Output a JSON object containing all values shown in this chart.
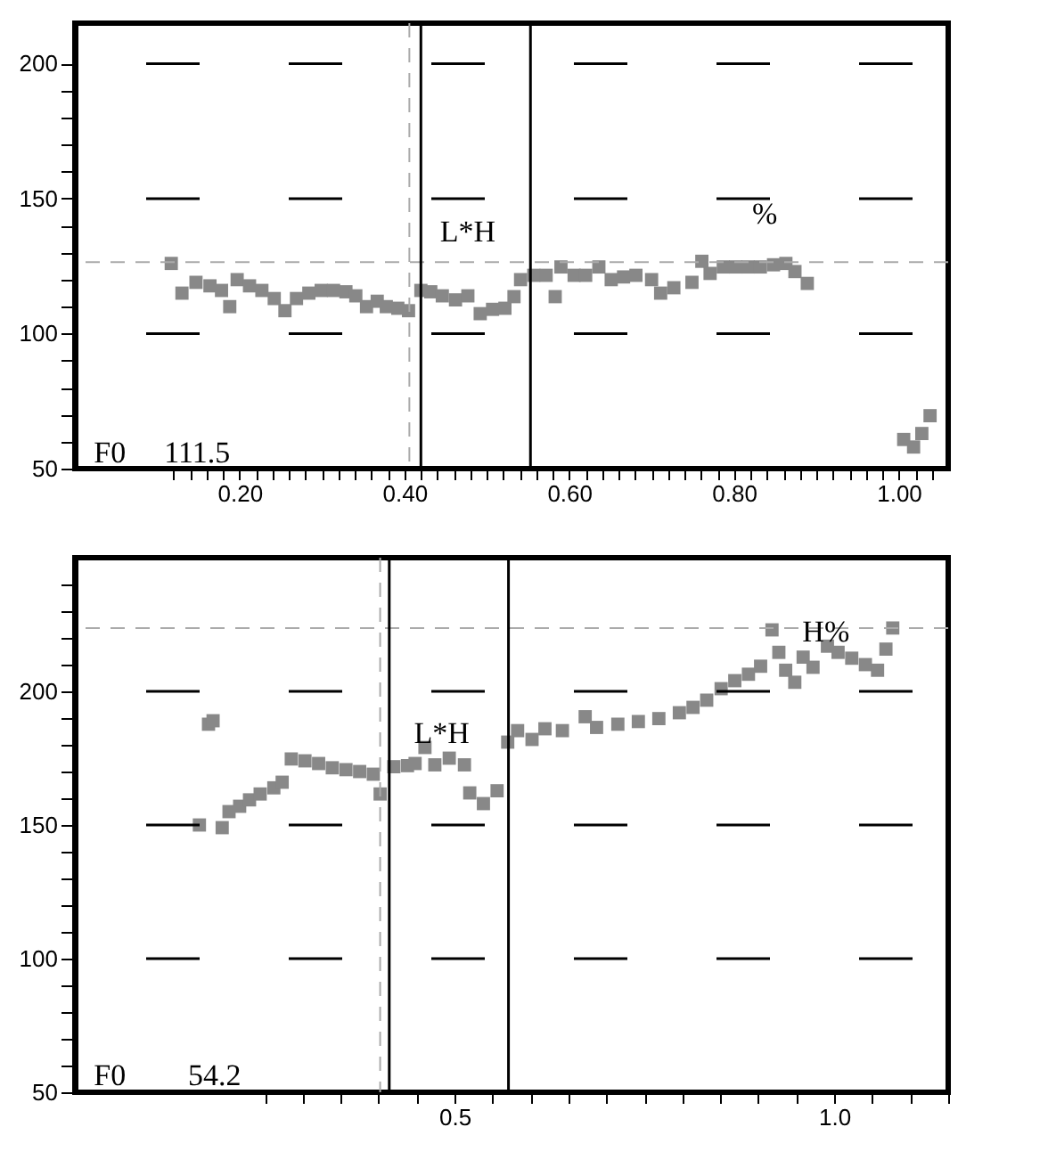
{
  "chart_data": [
    {
      "type": "scatter",
      "marker": "square",
      "grid": "y",
      "xlim": [
        0.0,
        1.06
      ],
      "ylim": [
        50,
        215
      ],
      "xticks": [
        {
          "value": 0.12,
          "label": null
        },
        {
          "value": 0.14,
          "label": null
        },
        {
          "value": 0.16,
          "label": null
        },
        {
          "value": 0.18,
          "label": null
        },
        {
          "value": 0.2,
          "label": "0.20"
        },
        {
          "value": 0.22,
          "label": null
        },
        {
          "value": 0.24,
          "label": null
        },
        {
          "value": 0.26,
          "label": null
        },
        {
          "value": 0.28,
          "label": null
        },
        {
          "value": 0.3,
          "label": null
        },
        {
          "value": 0.32,
          "label": null
        },
        {
          "value": 0.34,
          "label": null
        },
        {
          "value": 0.36,
          "label": null
        },
        {
          "value": 0.38,
          "label": null
        },
        {
          "value": 0.4,
          "label": "0.40"
        },
        {
          "value": 0.42,
          "label": null
        },
        {
          "value": 0.44,
          "label": null
        },
        {
          "value": 0.46,
          "label": null
        },
        {
          "value": 0.48,
          "label": null
        },
        {
          "value": 0.5,
          "label": null
        },
        {
          "value": 0.52,
          "label": null
        },
        {
          "value": 0.54,
          "label": null
        },
        {
          "value": 0.56,
          "label": null
        },
        {
          "value": 0.58,
          "label": null
        },
        {
          "value": 0.6,
          "label": "0.60"
        },
        {
          "value": 0.62,
          "label": null
        },
        {
          "value": 0.64,
          "label": null
        },
        {
          "value": 0.66,
          "label": null
        },
        {
          "value": 0.68,
          "label": null
        },
        {
          "value": 0.7,
          "label": null
        },
        {
          "value": 0.72,
          "label": null
        },
        {
          "value": 0.74,
          "label": null
        },
        {
          "value": 0.76,
          "label": null
        },
        {
          "value": 0.78,
          "label": null
        },
        {
          "value": 0.8,
          "label": "0.80"
        },
        {
          "value": 0.82,
          "label": null
        },
        {
          "value": 0.84,
          "label": null
        },
        {
          "value": 0.86,
          "label": null
        },
        {
          "value": 0.88,
          "label": null
        },
        {
          "value": 0.9,
          "label": null
        },
        {
          "value": 0.92,
          "label": null
        },
        {
          "value": 0.94,
          "label": null
        },
        {
          "value": 0.96,
          "label": null
        },
        {
          "value": 0.98,
          "label": null
        },
        {
          "value": 1.0,
          "label": "1.00"
        },
        {
          "value": 1.02,
          "label": null
        },
        {
          "value": 1.04,
          "label": null
        }
      ],
      "yticks": [
        50,
        {
          "value": 60,
          "label": null
        },
        {
          "value": 70,
          "label": null
        },
        {
          "value": 80,
          "label": null
        },
        {
          "value": 90,
          "label": null
        },
        100,
        {
          "value": 110,
          "label": null
        },
        {
          "value": 120,
          "label": null
        },
        {
          "value": 130,
          "label": null
        },
        {
          "value": 140,
          "label": null
        },
        150,
        {
          "value": 160,
          "label": null
        },
        {
          "value": 170,
          "label": null
        },
        {
          "value": 180,
          "label": null
        },
        {
          "value": 190,
          "label": null
        },
        200
      ],
      "ref_lines": [
        {
          "axis": "y",
          "value": 126.5,
          "line_style": "dashed",
          "color": "#aaaaaa"
        },
        {
          "axis": "x",
          "value": 0.406,
          "line_style": "dashed",
          "color": "#aaaaaa"
        },
        {
          "axis": "x",
          "value": 0.42,
          "line_style": "solid",
          "color": "#000000"
        },
        {
          "axis": "x",
          "value": 0.553,
          "line_style": "solid",
          "color": "#000000"
        }
      ],
      "annotations": [
        "F0",
        "111.5",
        "L*H",
        "%"
      ],
      "series": [
        {
          "color": "#888888",
          "x": [
            0.117,
            0.13,
            0.147,
            0.164,
            0.178,
            0.188,
            0.197,
            0.212,
            0.227,
            0.242,
            0.255,
            0.269,
            0.284,
            0.299,
            0.314,
            0.329,
            0.341,
            0.354,
            0.367,
            0.378,
            0.392,
            0.405,
            0.42,
            0.432,
            0.446,
            0.462,
            0.477,
            0.492,
            0.507,
            0.522,
            0.533,
            0.541,
            0.557,
            0.572,
            0.583,
            0.59,
            0.606,
            0.62,
            0.636,
            0.651,
            0.666,
            0.681,
            0.7,
            0.711,
            0.727,
            0.749,
            0.761,
            0.771,
            0.787,
            0.802,
            0.817,
            0.832,
            0.848,
            0.863,
            0.874,
            0.889,
            1.006,
            1.018,
            1.028,
            1.038
          ],
          "values": [
            126,
            115,
            119,
            117.7,
            116,
            110,
            120,
            117.7,
            116,
            113,
            108.5,
            113,
            115,
            116,
            116,
            115.5,
            114,
            110,
            112,
            110,
            109.4,
            108.5,
            116,
            115.5,
            114,
            112.5,
            114,
            107.4,
            109,
            109.4,
            113.7,
            120,
            121.6,
            121.6,
            113.7,
            124.7,
            121.6,
            121.6,
            124.7,
            120,
            121,
            121.6,
            120,
            115,
            117,
            119,
            126.8,
            122.3,
            124.7,
            124.7,
            124.7,
            124.7,
            125.5,
            126,
            123,
            118.6,
            60.8,
            58,
            63,
            69.6
          ]
        }
      ]
    },
    {
      "type": "scatter",
      "marker": "square",
      "grid": "y",
      "xlim": [
        0.0,
        1.15
      ],
      "ylim": [
        50,
        250
      ],
      "xticks": [
        {
          "value": 0.25,
          "label": null
        },
        {
          "value": 0.3,
          "label": null
        },
        {
          "value": 0.35,
          "label": null
        },
        {
          "value": 0.4,
          "label": null
        },
        {
          "value": 0.45,
          "label": null
        },
        {
          "value": 0.5,
          "label": "0.5"
        },
        {
          "value": 0.55,
          "label": null
        },
        {
          "value": 0.6,
          "label": null
        },
        {
          "value": 0.65,
          "label": null
        },
        {
          "value": 0.7,
          "label": null
        },
        {
          "value": 0.75,
          "label": null
        },
        {
          "value": 0.8,
          "label": null
        },
        {
          "value": 0.85,
          "label": null
        },
        {
          "value": 0.9,
          "label": null
        },
        {
          "value": 0.95,
          "label": null
        },
        {
          "value": 1.0,
          "label": "1.0"
        },
        {
          "value": 1.05,
          "label": null
        },
        {
          "value": 1.1,
          "label": null
        },
        {
          "value": 1.15,
          "label": null
        }
      ],
      "yticks": [
        50,
        {
          "value": 60,
          "label": null
        },
        {
          "value": 70,
          "label": null
        },
        {
          "value": 80,
          "label": null
        },
        {
          "value": 90,
          "label": null
        },
        100,
        {
          "value": 110,
          "label": null
        },
        {
          "value": 120,
          "label": null
        },
        {
          "value": 130,
          "label": null
        },
        {
          "value": 140,
          "label": null
        },
        150,
        {
          "value": 160,
          "label": null
        },
        {
          "value": 170,
          "label": null
        },
        {
          "value": 180,
          "label": null
        },
        {
          "value": 190,
          "label": null
        },
        200,
        {
          "value": 210,
          "label": null
        },
        {
          "value": 220,
          "label": null
        },
        {
          "value": 230,
          "label": null
        },
        {
          "value": 240,
          "label": null
        }
      ],
      "ref_lines": [
        {
          "axis": "y",
          "value": 223.7,
          "line_style": "dashed",
          "color": "#aaaaaa"
        },
        {
          "axis": "x",
          "value": 0.402,
          "line_style": "dashed",
          "color": "#aaaaaa"
        },
        {
          "axis": "x",
          "value": 0.414,
          "line_style": "solid",
          "color": "#000000"
        },
        {
          "axis": "x",
          "value": 0.571,
          "line_style": "solid",
          "color": "#000000"
        }
      ],
      "annotations": [
        "F0",
        "54.2",
        "L*H",
        "H%"
      ],
      "series": [
        {
          "color": "#888888",
          "x": [
            0.164,
            0.176,
            0.182,
            0.194,
            0.203,
            0.217,
            0.23,
            0.244,
            0.262,
            0.273,
            0.285,
            0.303,
            0.321,
            0.339,
            0.357,
            0.375,
            0.393,
            0.402,
            0.42,
            0.438,
            0.448,
            0.461,
            0.474,
            0.493,
            0.513,
            0.52,
            0.538,
            0.556,
            0.57,
            0.583,
            0.602,
            0.619,
            0.642,
            0.672,
            0.687,
            0.715,
            0.742,
            0.769,
            0.796,
            0.814,
            0.832,
            0.851,
            0.869,
            0.887,
            0.903,
            0.918,
            0.927,
            0.936,
            0.948,
            0.959,
            0.972,
            0.991,
            1.005,
            1.023,
            1.041,
            1.057,
            1.068,
            1.077
          ],
          "values": [
            150,
            187.7,
            189,
            149,
            155,
            157,
            159.4,
            161.6,
            163.9,
            166,
            174.7,
            174,
            173,
            171.4,
            170.7,
            170,
            169,
            161.6,
            171.8,
            172.2,
            173,
            179,
            172.5,
            175,
            172.5,
            162,
            158,
            162.8,
            181,
            185.3,
            182,
            186,
            185.3,
            190.5,
            186.5,
            187.7,
            188.7,
            189.8,
            192,
            194,
            196.7,
            201,
            204,
            206.4,
            209.4,
            223,
            214.6,
            207.9,
            203.4,
            212.8,
            209,
            216.9,
            214.6,
            212.4,
            210,
            207.9,
            215.8,
            223.7
          ]
        }
      ]
    }
  ]
}
